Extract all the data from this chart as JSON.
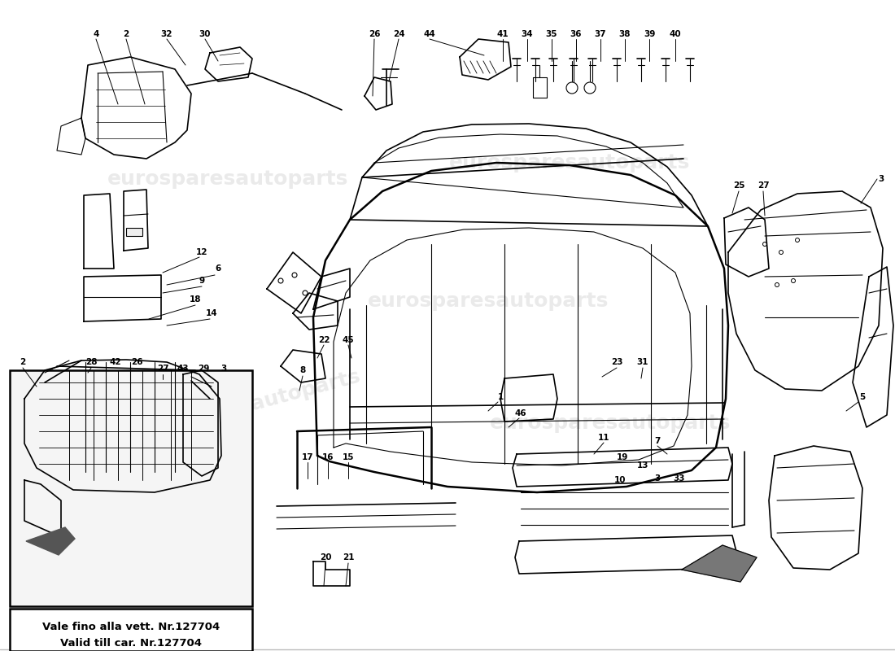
{
  "background_color": "#ffffff",
  "line_color": "#000000",
  "box_text_line1": "Vale fino alla vett. Nr.127704",
  "box_text_line2": "Valid till car. Nr.127704",
  "watermark_text": "eurosparesautoparts",
  "part_nums_top_left": [
    "4",
    "2",
    "32",
    "30"
  ],
  "part_nums_top_mid": [
    "26",
    "24",
    "44"
  ],
  "part_nums_top_right": [
    "41",
    "34",
    "35",
    "36",
    "37",
    "38",
    "39",
    "40"
  ],
  "part_nums_right_edge": [
    "3"
  ],
  "part_nums_mid_right": [
    "25",
    "27"
  ],
  "part_nums_left_mid": [
    "12",
    "9",
    "6",
    "18",
    "14"
  ],
  "part_nums_mid_low": [
    "22",
    "45",
    "8"
  ],
  "part_nums_center": [
    "1",
    "46"
  ],
  "part_nums_inset": [
    "2",
    "28",
    "42",
    "26",
    "27",
    "43",
    "29",
    "3"
  ],
  "part_nums_bottom_mid": [
    "17",
    "16",
    "15",
    "20",
    "21"
  ],
  "part_nums_bottom_right": [
    "11",
    "19",
    "13",
    "7",
    "10",
    "3",
    "33",
    "5",
    "23",
    "31"
  ]
}
